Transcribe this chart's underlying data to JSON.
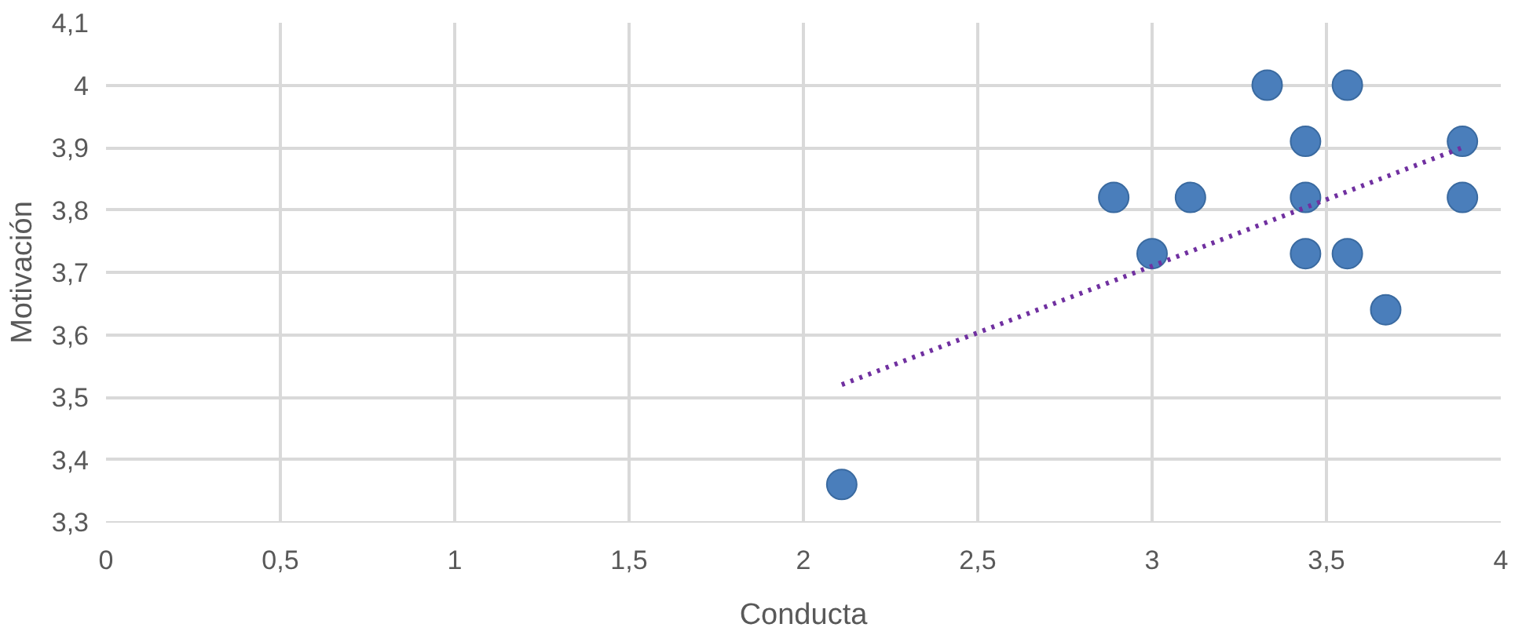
{
  "chart_data": {
    "type": "scatter",
    "xlabel": "Conducta",
    "ylabel": "Motivación",
    "xlim": [
      0,
      4
    ],
    "xticks": [
      {
        "value": 0,
        "label": "0"
      },
      {
        "value": 0.5,
        "label": "0,5"
      },
      {
        "value": 1,
        "label": "1"
      },
      {
        "value": 1.5,
        "label": "1,5"
      },
      {
        "value": 2,
        "label": "2"
      },
      {
        "value": 2.5,
        "label": "2,5"
      },
      {
        "value": 3,
        "label": "3"
      },
      {
        "value": 3.5,
        "label": "3,5"
      },
      {
        "value": 4,
        "label": "4"
      }
    ],
    "ylim": [
      3.3,
      4.1
    ],
    "yticks": [
      {
        "value": 3.3,
        "label": "3,3"
      },
      {
        "value": 3.4,
        "label": "3,4"
      },
      {
        "value": 3.5,
        "label": "3,5"
      },
      {
        "value": 3.6,
        "label": "3,6"
      },
      {
        "value": 3.7,
        "label": "3,7"
      },
      {
        "value": 3.8,
        "label": "3,8"
      },
      {
        "value": 3.9,
        "label": "3,9"
      },
      {
        "value": 4,
        "label": "4"
      },
      {
        "value": 4.1,
        "label": "4,1"
      }
    ],
    "grid": true,
    "series": [
      {
        "marker": "circle",
        "color": "#4a7ebb",
        "x": [
          2.11,
          2.89,
          3.0,
          3.11,
          3.33,
          3.44,
          3.44,
          3.44,
          3.56,
          3.56,
          3.67,
          3.89,
          3.89
        ],
        "values": [
          3.36,
          3.82,
          3.73,
          3.82,
          4.0,
          3.91,
          3.82,
          3.73,
          4.0,
          3.73,
          3.64,
          3.91,
          3.82
        ]
      },
      {
        "type": "line",
        "color": "#7030a0",
        "line_style": "dotted",
        "x": [
          2.11,
          3.89
        ],
        "values": [
          3.52,
          3.9
        ]
      }
    ]
  }
}
